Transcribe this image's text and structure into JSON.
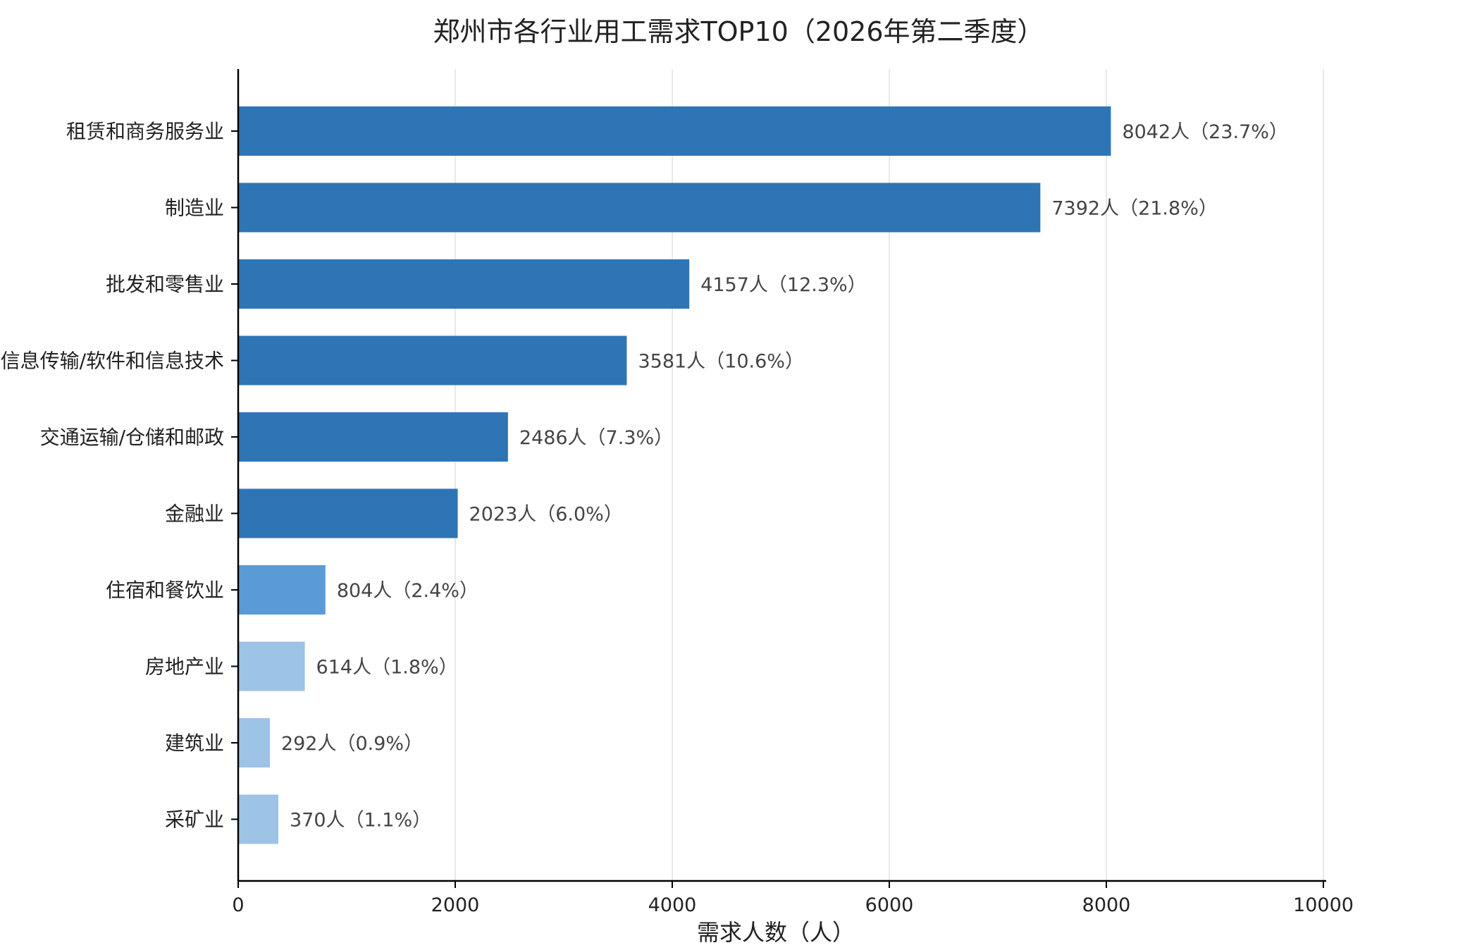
{
  "chart_data": {
    "type": "bar",
    "orientation": "horizontal",
    "title": "郑州市各行业用工需求TOP10（2026年第二季度）",
    "xlabel": "需求人数（人）",
    "ylabel": "",
    "xlim": [
      0,
      10000
    ],
    "xticks": [
      0,
      2000,
      4000,
      6000,
      8000,
      10000
    ],
    "grid": "vertical",
    "categories": [
      "租赁和商务服务业",
      "制造业",
      "批发和零售业",
      "信息传输/软件和信息技术",
      "交通运输/仓储和邮政",
      "金融业",
      "住宿和餐饮业",
      "房地产业",
      "建筑业",
      "采矿业"
    ],
    "values": [
      8042,
      7392,
      4157,
      3581,
      2486,
      2023,
      804,
      614,
      292,
      370
    ],
    "value_labels": [
      "8042人（23.7%）",
      "7392人（21.8%）",
      "4157人（12.3%）",
      "3581人（10.6%）",
      "2486人（7.3%）",
      "2023人（6.0%）",
      "804人（2.4%）",
      "614人（1.8%）",
      "292人（0.9%）",
      "370人（1.1%）"
    ],
    "bar_colors": [
      "#2e75b6",
      "#2e75b6",
      "#2e75b6",
      "#2e75b6",
      "#2e75b6",
      "#2e75b6",
      "#5b9bd5",
      "#9dc3e6",
      "#9dc3e6",
      "#9dc3e6"
    ],
    "colors": {
      "grid": "#e0e0e0",
      "axis": "#000000"
    }
  }
}
